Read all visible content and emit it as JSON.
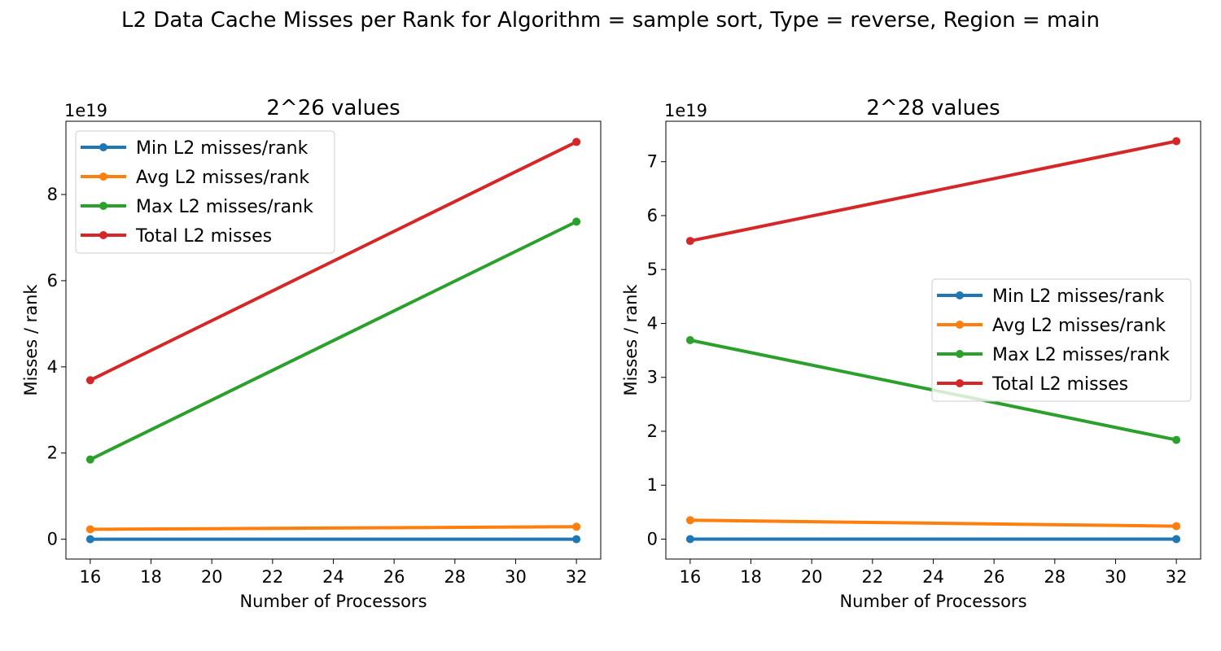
{
  "figure": {
    "suptitle": "L2 Data Cache Misses per Rank for Algorithm = sample sort, Type = reverse, Region = main"
  },
  "colors": {
    "min": "#1f77b4",
    "avg": "#ff7f0e",
    "max": "#2ca02c",
    "total": "#d62728"
  },
  "chart_data": [
    {
      "type": "line",
      "title": "2^26 values",
      "xlabel": "Number of Processors",
      "ylabel": "Misses / rank",
      "offset_text": "1e19",
      "x": [
        16,
        32
      ],
      "xlim": [
        15.2,
        32.8
      ],
      "xticks": [
        16,
        18,
        20,
        22,
        24,
        26,
        28,
        30,
        32
      ],
      "ylim": [
        -0.46,
        9.7
      ],
      "yticks": [
        0,
        2,
        4,
        6,
        8
      ],
      "legend_loc": "upper-left",
      "series": [
        {
          "name": "Min L2 misses/rank",
          "color_key": "min",
          "values": [
            0.0,
            0.0
          ]
        },
        {
          "name": "Avg L2 misses/rank",
          "color_key": "avg",
          "values": [
            0.23,
            0.29
          ]
        },
        {
          "name": "Max L2 misses/rank",
          "color_key": "max",
          "values": [
            1.85,
            7.37
          ]
        },
        {
          "name": "Total L2 misses",
          "color_key": "total",
          "values": [
            3.69,
            9.22
          ]
        }
      ]
    },
    {
      "type": "line",
      "title": "2^28 values",
      "xlabel": "Number of Processors",
      "ylabel": "Misses / rank",
      "offset_text": "1e19",
      "x": [
        16,
        32
      ],
      "xlim": [
        15.2,
        32.8
      ],
      "xticks": [
        16,
        18,
        20,
        22,
        24,
        26,
        28,
        30,
        32
      ],
      "ylim": [
        -0.37,
        7.75
      ],
      "yticks": [
        0,
        1,
        2,
        3,
        4,
        5,
        6,
        7
      ],
      "legend_loc": "center-right",
      "series": [
        {
          "name": "Min L2 misses/rank",
          "color_key": "min",
          "values": [
            0.0,
            0.0
          ]
        },
        {
          "name": "Avg L2 misses/rank",
          "color_key": "avg",
          "values": [
            0.35,
            0.24
          ]
        },
        {
          "name": "Max L2 misses/rank",
          "color_key": "max",
          "values": [
            3.69,
            1.84
          ]
        },
        {
          "name": "Total L2 misses",
          "color_key": "total",
          "values": [
            5.53,
            7.38
          ]
        }
      ]
    }
  ]
}
